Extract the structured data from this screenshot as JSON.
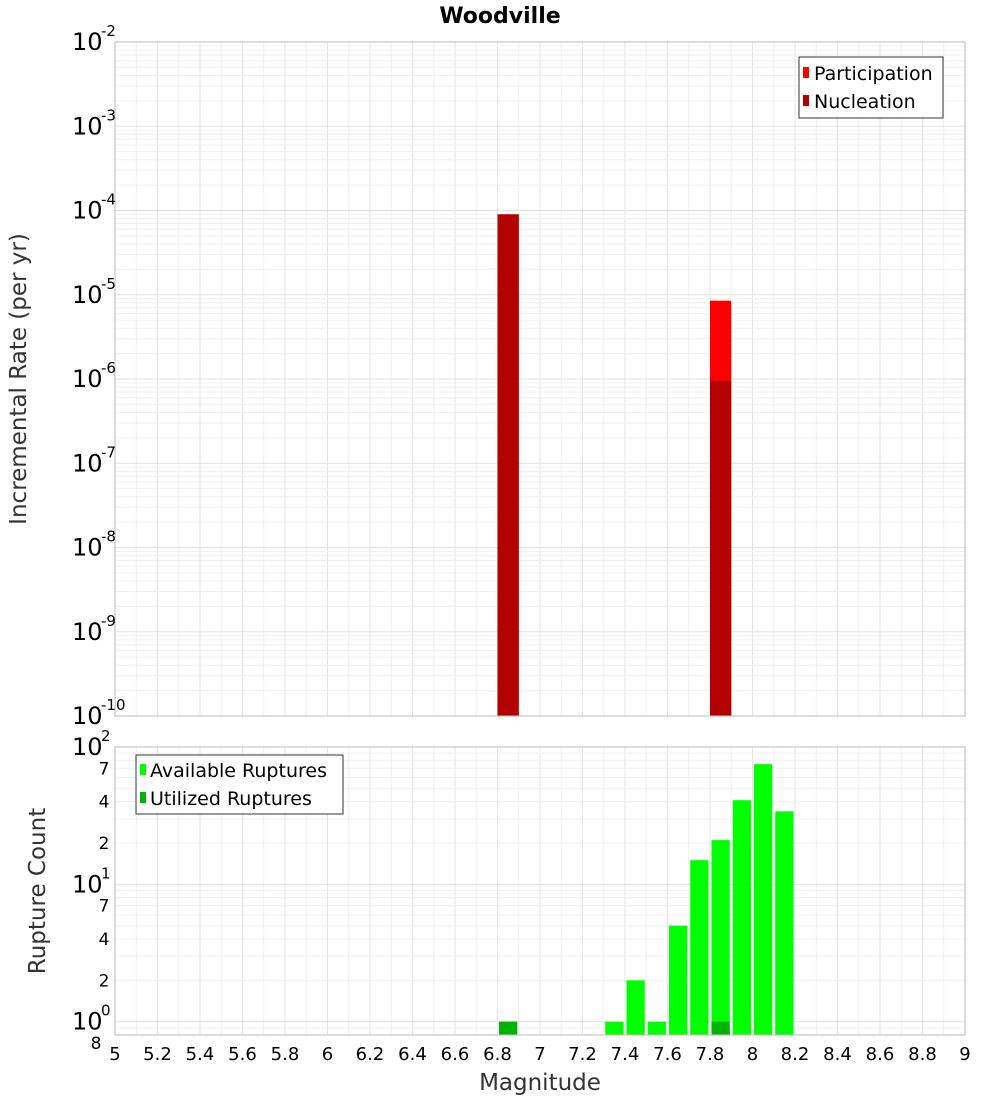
{
  "title": "Woodville",
  "colors": {
    "participation": "#ff0000",
    "nucleation": "#b30000",
    "available": "#00ff00",
    "utilized": "#00b300",
    "grid": "#e6e6e6",
    "frame": "#bbbbbb"
  },
  "chart_data": [
    {
      "type": "bar",
      "panel": "top",
      "scale": "log",
      "xlabel": "Magnitude",
      "ylabel": "Incremental Rate (per yr)",
      "xlim": [
        5,
        9
      ],
      "ylim": [
        1e-10,
        0.01
      ],
      "y_tick_exponents": [
        -10,
        -9,
        -8,
        -7,
        -6,
        -5,
        -4,
        -3,
        -2
      ],
      "bin_width": 0.1,
      "legend_position": "top-right",
      "series": [
        {
          "name": "Participation",
          "x": [
            6.85,
            7.85
          ],
          "values": [
            9e-05,
            8.5e-06
          ]
        },
        {
          "name": "Nucleation",
          "x": [
            6.85,
            7.85
          ],
          "values": [
            9e-05,
            9.5e-07
          ]
        }
      ]
    },
    {
      "type": "bar",
      "panel": "bottom",
      "scale": "log",
      "xlabel": "Magnitude",
      "ylabel": "Rupture Count",
      "xlim": [
        5,
        9
      ],
      "ylim": [
        0.8,
        100
      ],
      "x_ticks": [
        "5",
        "5.2",
        "5.4",
        "5.6",
        "5.8",
        "6",
        "6.2",
        "6.4",
        "6.6",
        "6.8",
        "7",
        "7.2",
        "7.4",
        "7.6",
        "7.8",
        "8",
        "8.2",
        "8.4",
        "8.6",
        "8.8",
        "9"
      ],
      "y_major_ticks": [
        {
          "base": "10",
          "exp": "0",
          "value": 1
        },
        {
          "base": "10",
          "exp": "1",
          "value": 10
        },
        {
          "base": "10",
          "exp": "2",
          "value": 100
        }
      ],
      "y_minor_ticks": [
        {
          "label": "8",
          "value": 0.8
        },
        {
          "label": "2",
          "value": 2
        },
        {
          "label": "4",
          "value": 4
        },
        {
          "label": "7",
          "value": 7
        },
        {
          "label": "2",
          "value": 20
        },
        {
          "label": "4",
          "value": 40
        },
        {
          "label": "7",
          "value": 70
        }
      ],
      "bin_width": 0.1,
      "legend_position": "top-left",
      "series": [
        {
          "name": "Available Ruptures",
          "x": [
            6.85,
            7.35,
            7.45,
            7.55,
            7.65,
            7.75,
            7.85,
            7.95,
            8.05,
            8.15
          ],
          "values": [
            1,
            1,
            2,
            1,
            5,
            15,
            21,
            41,
            75,
            34
          ]
        },
        {
          "name": "Utilized Ruptures",
          "x": [
            6.85,
            7.85
          ],
          "values": [
            1,
            1
          ]
        }
      ]
    }
  ]
}
